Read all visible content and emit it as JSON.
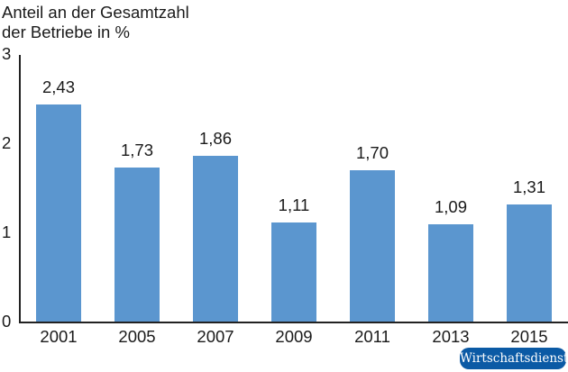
{
  "chart_data": {
    "type": "bar",
    "title": "Anteil an der Gesamtzahl der Betriebe in %",
    "title_lines": [
      "Anteil an der Gesamtzahl",
      "der Betriebe in %"
    ],
    "xlabel": "",
    "ylabel": "Anteil an der Gesamtzahl der Betriebe in %",
    "categories": [
      "2001",
      "2005",
      "2007",
      "2009",
      "2011",
      "2013",
      "2015"
    ],
    "values": [
      2.43,
      1.73,
      1.86,
      1.11,
      1.7,
      1.09,
      1.31
    ],
    "value_labels": [
      "2,43",
      "1,73",
      "1,86",
      "1,11",
      "1,70",
      "1,09",
      "1,31"
    ],
    "ylim": [
      0,
      3
    ],
    "yticks": [
      "0",
      "1",
      "2",
      "3"
    ],
    "grid": false,
    "legend": null,
    "bar_color": "#5b96cf"
  },
  "source_badge": "Wirtschaftsdienst",
  "colors": {
    "bar": "#5b96cf",
    "badge": "#0b5aa5",
    "axis": "#222222"
  }
}
